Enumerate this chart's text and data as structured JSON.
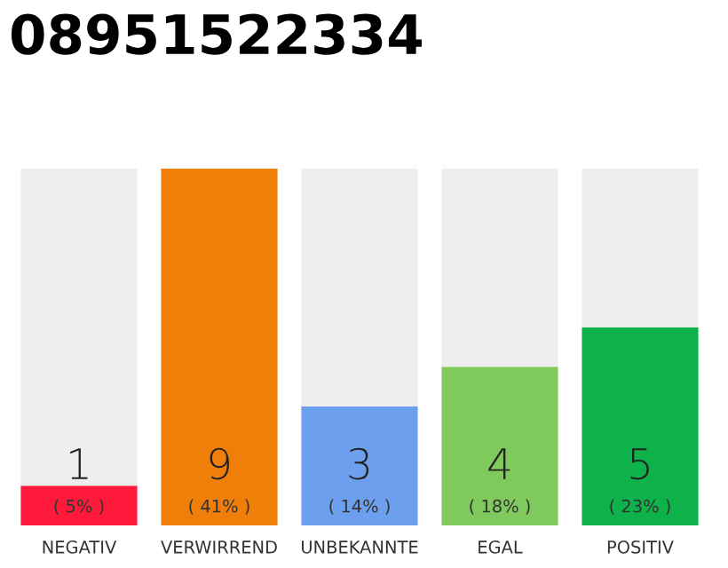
{
  "chart_data": {
    "type": "bar",
    "title": "08951522334",
    "stacked": true,
    "categories": [
      "NEGATIV",
      "VERWIRREND",
      "UNBEKANNTE",
      "EGAL",
      "POSITIV"
    ],
    "series": [
      {
        "colors": [
          "#ff1a3c",
          "#f07f0a",
          "#6ca0ee",
          "#80c95c",
          "#0db24b"
        ],
        "values": [
          1,
          9,
          3,
          4,
          5
        ],
        "value_labels": [
          "1",
          "9",
          "3",
          "4",
          "5"
        ]
      },
      {
        "color": "#eeeeee",
        "values": [
          8,
          0,
          6,
          5,
          4
        ]
      }
    ],
    "annotations": [
      "( 5% )",
      "( 41% )",
      "( 14% )",
      "( 18% )",
      "( 23% )"
    ],
    "grid": false,
    "legend": false,
    "tick_labels": "x"
  }
}
